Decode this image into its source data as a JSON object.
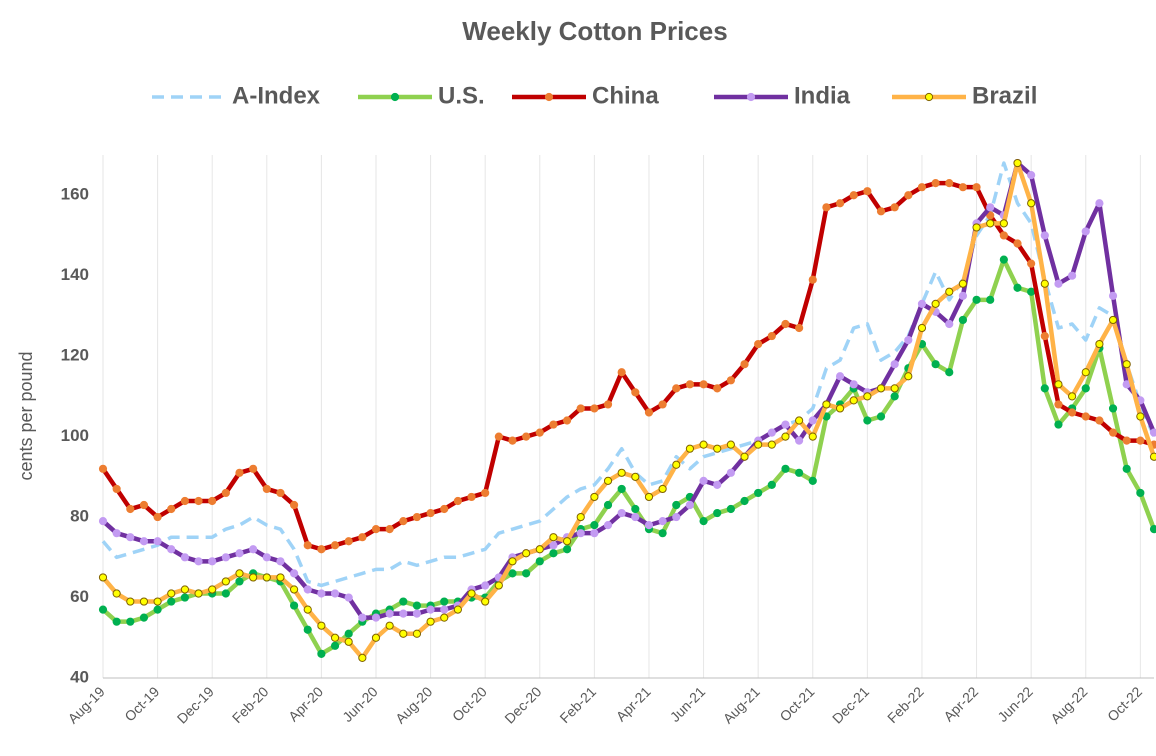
{
  "chart_data": {
    "type": "line",
    "title": "Weekly Cotton Prices",
    "y_label": "cents per pound",
    "categories": [
      "Aug-19",
      null,
      null,
      null,
      "Oct-19",
      null,
      null,
      null,
      "Dec-19",
      null,
      null,
      null,
      "Feb-20",
      null,
      null,
      null,
      "Apr-20",
      null,
      null,
      null,
      "Jun-20",
      null,
      null,
      null,
      "Aug-20",
      null,
      null,
      null,
      "Oct-20",
      null,
      null,
      null,
      "Dec-20",
      null,
      null,
      null,
      "Feb-21",
      null,
      null,
      null,
      "Apr-21",
      null,
      null,
      null,
      "Jun-21",
      null,
      null,
      null,
      "Aug-21",
      null,
      null,
      null,
      "Oct-21",
      null,
      null,
      null,
      "Dec-21",
      null,
      null,
      null,
      "Feb-22",
      null,
      null,
      null,
      "Apr-22",
      null,
      null,
      null,
      "Jun-22",
      null,
      null,
      null,
      "Aug-22",
      null,
      null,
      null,
      "Oct-22",
      null
    ],
    "ylim": [
      40,
      170
    ],
    "yticks": [
      40,
      60,
      80,
      100,
      120,
      140,
      160
    ],
    "grid": "x",
    "legend": "top",
    "series": [
      {
        "name": "A-Index",
        "color": "#9fd3f7",
        "dashed": true,
        "markers": false,
        "values": [
          74,
          70,
          71,
          72,
          73,
          75,
          75,
          75,
          75,
          77,
          78,
          80,
          78,
          77,
          72,
          64,
          63,
          64,
          65,
          66,
          67,
          67,
          69,
          68,
          69,
          70,
          70,
          71,
          72,
          76,
          77,
          78,
          79,
          82,
          85,
          87,
          88,
          92,
          97,
          91,
          88,
          89,
          95,
          92,
          95,
          96,
          97,
          98,
          99,
          101,
          103,
          104,
          107,
          117,
          119,
          127,
          128,
          119,
          121,
          125,
          133,
          141,
          134,
          139,
          150,
          155,
          168,
          158,
          153,
          139,
          127,
          128,
          124,
          132,
          130,
          118,
          108,
          100
        ]
      },
      {
        "name": "U.S.",
        "color": "#8fd14f",
        "marker_color": "#00b050",
        "marker_stroke": "#00b050",
        "dashed": false,
        "markers": true,
        "values": [
          57,
          54,
          54,
          55,
          57,
          59,
          60,
          61,
          61,
          61,
          64,
          66,
          65,
          64,
          58,
          52,
          46,
          48,
          51,
          54,
          56,
          57,
          59,
          58,
          58,
          59,
          59,
          60,
          60,
          64,
          66,
          66,
          69,
          71,
          72,
          77,
          78,
          83,
          87,
          82,
          77,
          76,
          83,
          85,
          79,
          81,
          82,
          84,
          86,
          88,
          92,
          91,
          89,
          105,
          108,
          112,
          104,
          105,
          110,
          117,
          123,
          118,
          116,
          129,
          134,
          134,
          144,
          137,
          136,
          112,
          103,
          107,
          112,
          122,
          107,
          92,
          86,
          77
        ]
      },
      {
        "name": "China",
        "color": "#c00000",
        "marker_color": "#ed7d31",
        "marker_stroke": "#ed7d31",
        "dashed": false,
        "markers": true,
        "values": [
          92,
          87,
          82,
          83,
          80,
          82,
          84,
          84,
          84,
          86,
          91,
          92,
          87,
          86,
          83,
          73,
          72,
          73,
          74,
          75,
          77,
          77,
          79,
          80,
          81,
          82,
          84,
          85,
          86,
          100,
          99,
          100,
          101,
          103,
          104,
          107,
          107,
          108,
          116,
          111,
          106,
          108,
          112,
          113,
          113,
          112,
          114,
          118,
          123,
          125,
          128,
          127,
          139,
          157,
          158,
          160,
          161,
          156,
          157,
          160,
          162,
          163,
          163,
          162,
          162,
          155,
          150,
          148,
          143,
          125,
          108,
          106,
          105,
          104,
          101,
          99,
          99,
          98
        ]
      },
      {
        "name": "India",
        "color": "#7030a0",
        "marker_color": "#c39bf2",
        "marker_stroke": "#c39bf2",
        "dashed": false,
        "markers": true,
        "values": [
          79,
          76,
          75,
          74,
          74,
          72,
          70,
          69,
          69,
          70,
          71,
          72,
          70,
          69,
          66,
          62,
          61,
          61,
          60,
          55,
          55,
          56,
          56,
          56,
          57,
          57,
          58,
          62,
          63,
          65,
          70,
          71,
          72,
          73,
          75,
          76,
          76,
          78,
          81,
          80,
          78,
          79,
          80,
          83,
          89,
          88,
          91,
          95,
          99,
          101,
          103,
          99,
          104,
          108,
          115,
          113,
          111,
          112,
          118,
          124,
          133,
          131,
          128,
          135,
          153,
          157,
          155,
          168,
          165,
          150,
          138,
          140,
          151,
          158,
          135,
          113,
          109,
          101
        ]
      },
      {
        "name": "Brazil",
        "color": "#ffb347",
        "marker_color": "#ffff00",
        "marker_stroke": "#7f6000",
        "dashed": false,
        "markers": true,
        "values": [
          65,
          61,
          59,
          59,
          59,
          61,
          62,
          61,
          62,
          64,
          66,
          65,
          65,
          65,
          62,
          57,
          53,
          50,
          49,
          45,
          50,
          53,
          51,
          51,
          54,
          55,
          57,
          61,
          59,
          63,
          69,
          71,
          72,
          75,
          74,
          80,
          85,
          89,
          91,
          90,
          85,
          87,
          93,
          97,
          98,
          97,
          98,
          95,
          98,
          98,
          100,
          104,
          100,
          108,
          107,
          109,
          110,
          112,
          112,
          115,
          127,
          133,
          136,
          138,
          152,
          153,
          153,
          168,
          158,
          138,
          113,
          110,
          116,
          123,
          129,
          118,
          105,
          95
        ]
      }
    ]
  }
}
